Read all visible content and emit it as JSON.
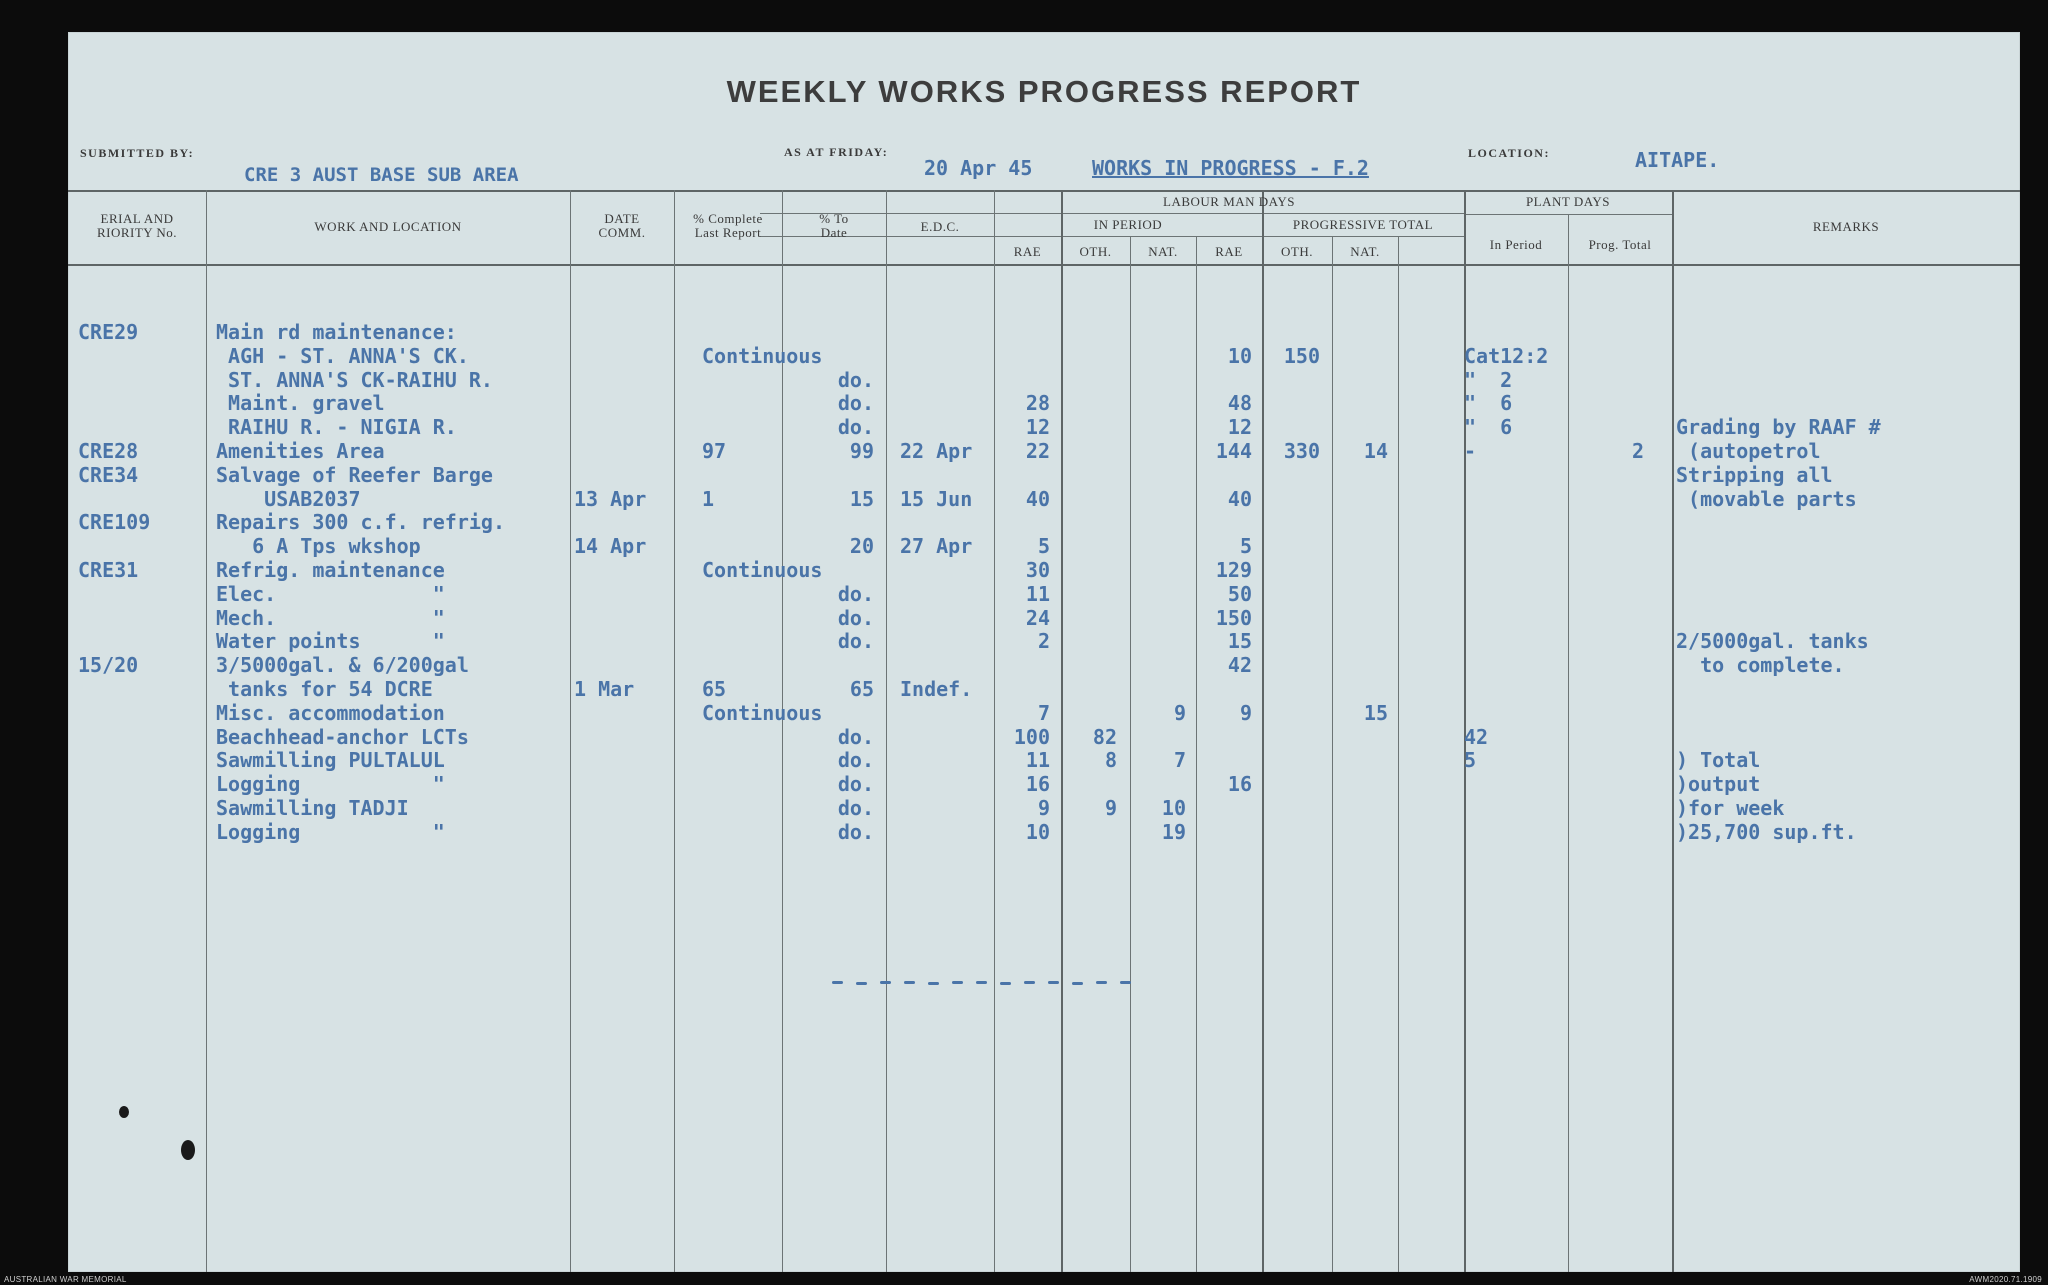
{
  "title": "WEEKLY WORKS PROGRESS REPORT",
  "labels": {
    "submitted_by": "SUBMITTED BY:",
    "as_at_friday": "AS AT FRIDAY:",
    "location": "LOCATION:"
  },
  "fields": {
    "submitted_by": "CRE 3 AUST BASE SUB AREA",
    "date": "20 Apr 45",
    "works": "WORKS IN PROGRESS - F.2",
    "location": "AITAPE."
  },
  "headers": {
    "serial_1": "ERIAL AND",
    "serial_2": "RIORITY No.",
    "work": "WORK AND LOCATION",
    "date_1": "DATE",
    "date_2": "COMM.",
    "last_1": "% Complete",
    "last_2": "Last Report",
    "todate_1": "% To",
    "todate_2": "Date",
    "edc": "E.D.C.",
    "labour": "LABOUR MAN DAYS",
    "in_period": "IN PERIOD",
    "prog_total": "PROGRESSIVE TOTAL",
    "rae": "RAE",
    "oth": "OTH.",
    "nat": "NAT.",
    "plant": "PLANT DAYS",
    "plant_in_period": "In Period",
    "plant_prog_total": "Prog. Total",
    "remarks": "REMARKS"
  },
  "rows": [
    {
      "serial": "CRE29",
      "work": "Main rd maintenance:",
      "last": "",
      "todate": "",
      "date": "",
      "edc": "",
      "ip_rae": "",
      "ip_oth": "",
      "ip_nat": "",
      "pt_rae": "",
      "pt_oth": "",
      "pt_nat": "",
      "plant_ip": "",
      "plant_pt": "",
      "remarks": ""
    },
    {
      "serial": "",
      "work": " AGH - ST. ANNA'S CK.",
      "last": "Continuous",
      "todate": "",
      "date": "",
      "edc": "",
      "ip_rae": "",
      "ip_oth": "",
      "ip_nat": "",
      "pt_rae": "10",
      "pt_oth": "150",
      "pt_nat": "",
      "plant_ip": "Cat12:2",
      "plant_pt": "",
      "remarks": ""
    },
    {
      "serial": "",
      "work": " ST. ANNA'S CK-RAIHU R.",
      "last": "",
      "todate": "do.",
      "date": "",
      "edc": "",
      "ip_rae": "",
      "ip_oth": "",
      "ip_nat": "",
      "pt_rae": "",
      "pt_oth": "",
      "pt_nat": "",
      "plant_ip": "\"  2",
      "plant_pt": "",
      "remarks": ""
    },
    {
      "serial": "",
      "work": " Maint. gravel",
      "last": "",
      "todate": "do.",
      "date": "",
      "edc": "",
      "ip_rae": "28",
      "ip_oth": "",
      "ip_nat": "",
      "pt_rae": "48",
      "pt_oth": "",
      "pt_nat": "",
      "plant_ip": "\"  6",
      "plant_pt": "",
      "remarks": ""
    },
    {
      "serial": "",
      "work": " RAIHU R. - NIGIA R.",
      "last": "",
      "todate": "do.",
      "date": "",
      "edc": "",
      "ip_rae": "12",
      "ip_oth": "",
      "ip_nat": "",
      "pt_rae": "12",
      "pt_oth": "",
      "pt_nat": "",
      "plant_ip": "\"  6",
      "plant_pt": "",
      "remarks": "Grading by RAAF #"
    },
    {
      "serial": "CRE28",
      "work": "Amenities Area",
      "last": "97",
      "todate": "99",
      "date": "",
      "edc": "22 Apr",
      "ip_rae": "22",
      "ip_oth": "",
      "ip_nat": "",
      "pt_rae": "144",
      "pt_oth": "330",
      "pt_nat": "14",
      "plant_ip": "-",
      "plant_pt": "2",
      "remarks": " (autopetrol"
    },
    {
      "serial": "CRE34",
      "work": "Salvage of Reefer Barge",
      "last": "",
      "todate": "",
      "date": "",
      "edc": "",
      "ip_rae": "",
      "ip_oth": "",
      "ip_nat": "",
      "pt_rae": "",
      "pt_oth": "",
      "pt_nat": "",
      "plant_ip": "",
      "plant_pt": "",
      "remarks": "Stripping all"
    },
    {
      "serial": "",
      "work": "    USAB2037",
      "last": "1",
      "todate": "15",
      "date": "13 Apr",
      "edc": "15 Jun",
      "ip_rae": "40",
      "ip_oth": "",
      "ip_nat": "",
      "pt_rae": "40",
      "pt_oth": "",
      "pt_nat": "",
      "plant_ip": "",
      "plant_pt": "",
      "remarks": " (movable parts"
    },
    {
      "serial": "CRE109",
      "work": "Repairs 300 c.f. refrig.",
      "last": "",
      "todate": "",
      "date": "",
      "edc": "",
      "ip_rae": "",
      "ip_oth": "",
      "ip_nat": "",
      "pt_rae": "",
      "pt_oth": "",
      "pt_nat": "",
      "plant_ip": "",
      "plant_pt": "",
      "remarks": ""
    },
    {
      "serial": "",
      "work": "   6 A Tps wkshop",
      "last": "",
      "todate": "20",
      "date": "14 Apr",
      "edc": "27 Apr",
      "ip_rae": "5",
      "ip_oth": "",
      "ip_nat": "",
      "pt_rae": "5",
      "pt_oth": "",
      "pt_nat": "",
      "plant_ip": "",
      "plant_pt": "",
      "remarks": ""
    },
    {
      "serial": "CRE31",
      "work": "Refrig. maintenance",
      "last": "Continuous",
      "todate": "",
      "date": "",
      "edc": "",
      "ip_rae": "30",
      "ip_oth": "",
      "ip_nat": "",
      "pt_rae": "129",
      "pt_oth": "",
      "pt_nat": "",
      "plant_ip": "",
      "plant_pt": "",
      "remarks": ""
    },
    {
      "serial": "",
      "work": "Elec.             \"",
      "last": "",
      "todate": "do.",
      "date": "",
      "edc": "",
      "ip_rae": "11",
      "ip_oth": "",
      "ip_nat": "",
      "pt_rae": "50",
      "pt_oth": "",
      "pt_nat": "",
      "plant_ip": "",
      "plant_pt": "",
      "remarks": ""
    },
    {
      "serial": "",
      "work": "Mech.             \"",
      "last": "",
      "todate": "do.",
      "date": "",
      "edc": "",
      "ip_rae": "24",
      "ip_oth": "",
      "ip_nat": "",
      "pt_rae": "150",
      "pt_oth": "",
      "pt_nat": "",
      "plant_ip": "",
      "plant_pt": "",
      "remarks": ""
    },
    {
      "serial": "",
      "work": "Water points      \"",
      "last": "",
      "todate": "do.",
      "date": "",
      "edc": "",
      "ip_rae": "2",
      "ip_oth": "",
      "ip_nat": "",
      "pt_rae": "15",
      "pt_oth": "",
      "pt_nat": "",
      "plant_ip": "",
      "plant_pt": "",
      "remarks": "2/5000gal. tanks"
    },
    {
      "serial": "15/20",
      "work": "3/5000gal. & 6/200gal",
      "last": "",
      "todate": "",
      "date": "",
      "edc": "",
      "ip_rae": "",
      "ip_oth": "",
      "ip_nat": "",
      "pt_rae": "42",
      "pt_oth": "",
      "pt_nat": "",
      "plant_ip": "",
      "plant_pt": "",
      "remarks": "  to complete."
    },
    {
      "serial": "",
      "work": " tanks for 54 DCRE",
      "last": "65",
      "todate": "65",
      "date": "1 Mar",
      "edc": "Indef.",
      "ip_rae": "",
      "ip_oth": "",
      "ip_nat": "",
      "pt_rae": "",
      "pt_oth": "",
      "pt_nat": "",
      "plant_ip": "",
      "plant_pt": "",
      "remarks": ""
    },
    {
      "serial": "",
      "work": "Misc. accommodation",
      "last": "Continuous",
      "todate": "",
      "date": "",
      "edc": "",
      "ip_rae": "7",
      "ip_oth": "",
      "ip_nat": "9",
      "pt_rae": "9",
      "pt_oth": "",
      "pt_nat": "15",
      "plant_ip": "",
      "plant_pt": "",
      "remarks": ""
    },
    {
      "serial": "",
      "work": "Beachhead-anchor LCTs",
      "last": "",
      "todate": "do.",
      "date": "",
      "edc": "",
      "ip_rae": "100",
      "ip_oth": "82",
      "ip_nat": "",
      "pt_rae": "",
      "pt_oth": "",
      "pt_nat": "",
      "plant_ip": "42",
      "plant_pt": "",
      "remarks": ""
    },
    {
      "serial": "",
      "work": "Sawmilling PULTALUL",
      "last": "",
      "todate": "do.",
      "date": "",
      "edc": "",
      "ip_rae": "11",
      "ip_oth": "8",
      "ip_nat": "7",
      "pt_rae": "",
      "pt_oth": "",
      "pt_nat": "",
      "plant_ip": "5",
      "plant_pt": "",
      "remarks": ") Total"
    },
    {
      "serial": "",
      "work": "Logging           \"",
      "last": "",
      "todate": "do.",
      "date": "",
      "edc": "",
      "ip_rae": "16",
      "ip_oth": "",
      "ip_nat": "",
      "pt_rae": "16",
      "pt_oth": "",
      "pt_nat": "",
      "plant_ip": "",
      "plant_pt": "",
      "remarks": ")output"
    },
    {
      "serial": "",
      "work": "Sawmilling TADJI",
      "last": "",
      "todate": "do.",
      "date": "",
      "edc": "",
      "ip_rae": "9",
      "ip_oth": "9",
      "ip_nat": "10",
      "pt_rae": "",
      "pt_oth": "",
      "pt_nat": "",
      "plant_ip": "",
      "plant_pt": "",
      "remarks": ")for week"
    },
    {
      "serial": "",
      "work": "Logging           \"",
      "last": "",
      "todate": "do.",
      "date": "",
      "edc": "",
      "ip_rae": "10",
      "ip_oth": "",
      "ip_nat": "19",
      "pt_rae": "",
      "pt_oth": "",
      "pt_nat": "",
      "plant_ip": "",
      "plant_pt": "",
      "remarks": ")25,700 sup.ft."
    }
  ],
  "footer": {
    "left": "AUSTRALIAN WAR MEMORIAL",
    "right": "AWM2020.71.1909"
  }
}
